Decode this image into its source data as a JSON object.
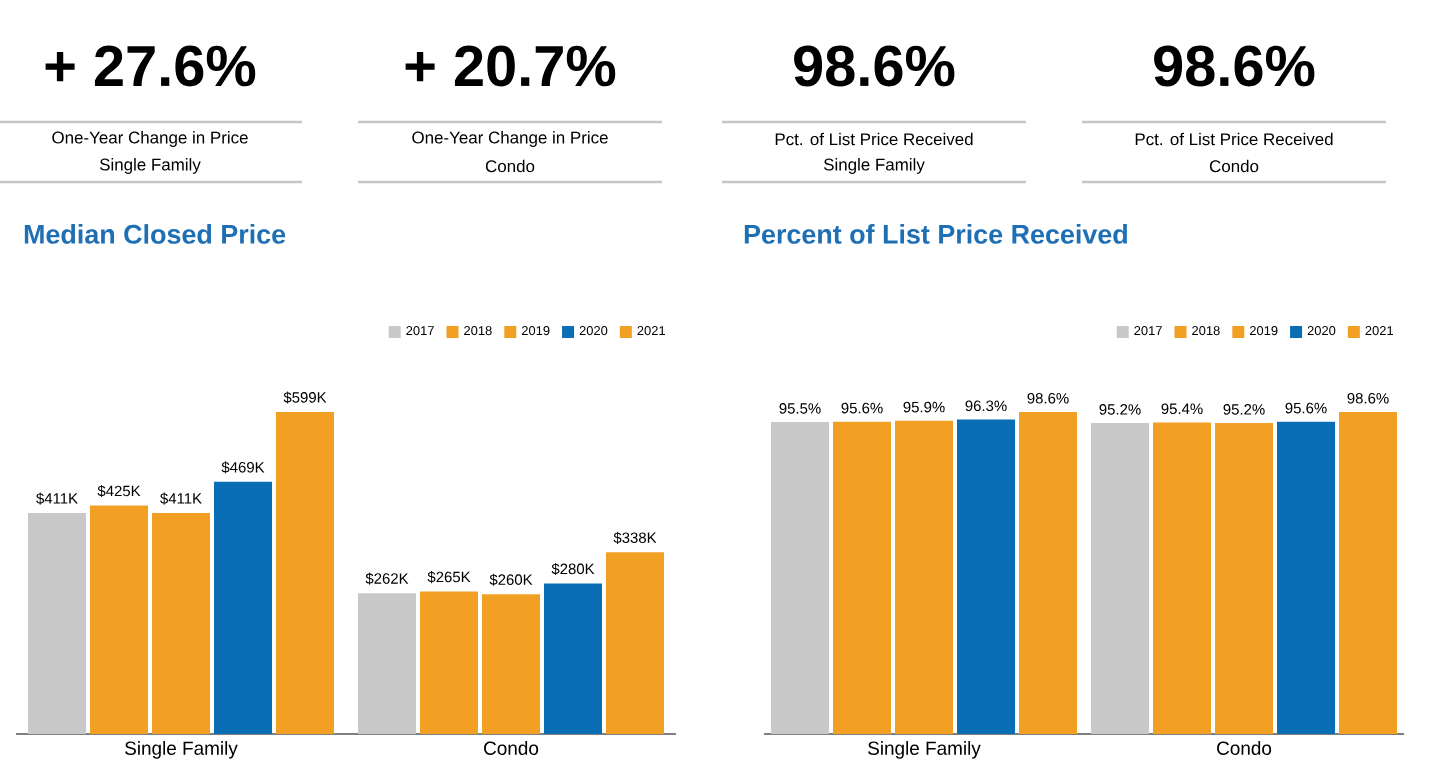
{
  "chart_data": [
    {
      "type": "other",
      "annotations": [
        "+ 27.6%",
        "One-Year Change in Price",
        "Single Family",
        "+ 20.7%",
        "One-Year Change in Price",
        "Condo"
      ]
    },
    {
      "type": "bar",
      "title": "Median Closed Price",
      "categories": [
        "Single Family",
        "Condo"
      ],
      "legend": "top right",
      "series": [
        {
          "name": "2017",
          "color": "#c8c8c8",
          "values": [
            411,
            262
          ],
          "value_labels": [
            "$411K",
            "$262K"
          ]
        },
        {
          "name": "2018",
          "color": "#f2a024",
          "values": [
            425,
            265
          ],
          "value_labels": [
            "$425K",
            "$265K"
          ]
        },
        {
          "name": "2019",
          "color": "#f2a024",
          "values": [
            411,
            260
          ],
          "value_labels": [
            "$411K",
            "$260K"
          ]
        },
        {
          "name": "2020",
          "color": "#0a6eb4",
          "values": [
            469,
            280
          ],
          "value_labels": [
            "$469K",
            "$280K"
          ]
        },
        {
          "name": "2021",
          "color": "#f2a024",
          "values": [
            599,
            338
          ],
          "value_labels": [
            "$599K",
            "$338K"
          ]
        }
      ]
    },
    {
      "type": "other",
      "annotations": [
        "98.6%",
        "Pct. of List Price Received",
        "Single Family",
        "98.6%",
        "Pct. of List Price Received",
        "Condo"
      ]
    },
    {
      "type": "bar",
      "title": "Percent of List Price Received",
      "categories": [
        "Single Family",
        "Condo"
      ],
      "legend": "top right",
      "series": [
        {
          "name": "2017",
          "color": "#c8c8c8",
          "values": [
            95.5,
            95.2
          ],
          "value_labels": [
            "95.5%",
            "95.2%"
          ]
        },
        {
          "name": "2018",
          "color": "#f2a024",
          "values": [
            95.6,
            95.4
          ],
          "value_labels": [
            "95.6%",
            "95.4%"
          ]
        },
        {
          "name": "2019",
          "color": "#f2a024",
          "values": [
            95.9,
            95.2
          ],
          "value_labels": [
            "95.9%",
            "95.2%"
          ]
        },
        {
          "name": "2020",
          "color": "#0a6eb4",
          "values": [
            96.3,
            95.6
          ],
          "value_labels": [
            "96.3%",
            "95.6%"
          ]
        },
        {
          "name": "2021",
          "color": "#f2a024",
          "values": [
            98.6,
            98.6
          ],
          "value_labels": [
            "98.6%",
            "98.6%"
          ]
        }
      ]
    }
  ]
}
